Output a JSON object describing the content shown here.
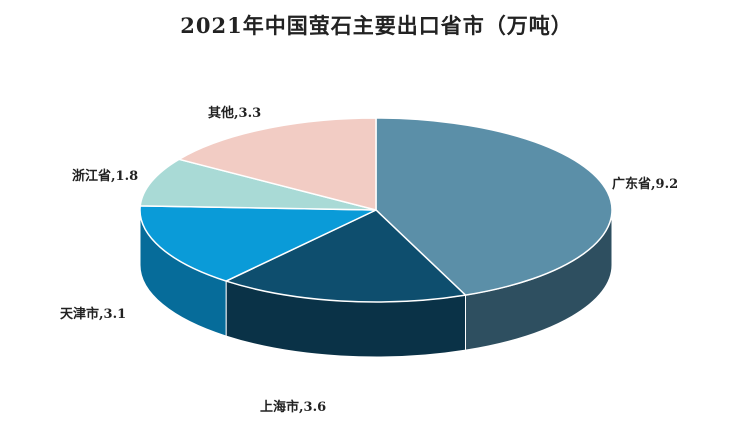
{
  "chart_data": {
    "type": "pie",
    "title": "2021年中国萤石主要出口省市（万吨）",
    "slices": [
      {
        "name": "广东省",
        "value": 9.2,
        "color": "#5B8FA8",
        "side": "#2E4F60"
      },
      {
        "name": "上海市",
        "value": 3.6,
        "color": "#0E4E6E",
        "side": "#0A3247"
      },
      {
        "name": "天津市",
        "value": 3.1,
        "color": "#0A9BD8",
        "side": "#066C9A"
      },
      {
        "name": "浙江省",
        "value": 1.8,
        "color": "#A9DAD6",
        "side": "#78A9A5"
      },
      {
        "name": "其他",
        "value": 3.3,
        "color": "#F2CCC4",
        "side": "#C9A39B"
      }
    ],
    "label_separator": ",",
    "legend": "none"
  }
}
